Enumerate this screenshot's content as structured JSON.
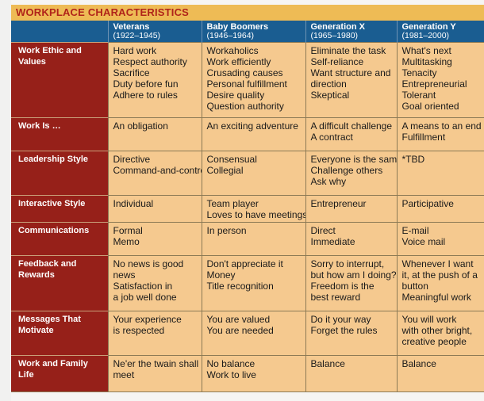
{
  "title": "WORKPLACE CHARACTERISTICS",
  "columns": [
    {
      "name": "Veterans",
      "years": "(1922–1945)"
    },
    {
      "name": "Baby Boomers",
      "years": "(1946–1964)"
    },
    {
      "name": "Generation X",
      "years": "(1965–1980)"
    },
    {
      "name": "Generation Y",
      "years": "(1981–2000)"
    }
  ],
  "rows": [
    {
      "label": [
        "Work Ethic and",
        "Values"
      ],
      "cells": [
        [
          "Hard work",
          "Respect authority",
          "Sacrifice",
          "Duty before fun",
          "Adhere to rules"
        ],
        [
          "Workaholics",
          "Work efficiently",
          "Crusading causes",
          "Personal fulfillment",
          "Desire quality",
          "Question authority"
        ],
        [
          "Eliminate the task",
          "Self-reliance",
          "Want structure and",
          "direction",
          "Skeptical"
        ],
        [
          "What's next",
          "Multitasking",
          "Tenacity",
          "Entrepreneurial",
          "Tolerant",
          "Goal oriented"
        ]
      ]
    },
    {
      "label": [
        "Work Is …"
      ],
      "cells": [
        [
          "An obligation"
        ],
        [
          "An exciting adventure"
        ],
        [
          "A difficult challenge",
          "A contract"
        ],
        [
          "A means to an end",
          "Fulfillment"
        ]
      ]
    },
    {
      "label": [
        "Leadership Style"
      ],
      "cells": [
        [
          "Directive",
          "Command-and-control"
        ],
        [
          "Consensual",
          "Collegial"
        ],
        [
          "Everyone is the same",
          "Challenge others",
          "Ask why"
        ],
        [
          "*TBD"
        ]
      ]
    },
    {
      "label": [
        "Interactive Style"
      ],
      "cells": [
        [
          "Individual"
        ],
        [
          "Team player",
          "Loves to have meetings"
        ],
        [
          "Entrepreneur"
        ],
        [
          "Participative"
        ]
      ]
    },
    {
      "label": [
        "Communications"
      ],
      "cells": [
        [
          "Formal",
          "Memo"
        ],
        [
          "In person"
        ],
        [
          "Direct",
          "Immediate"
        ],
        [
          "E-mail",
          "Voice mail"
        ]
      ]
    },
    {
      "label": [
        "Feedback and",
        "Rewards"
      ],
      "cells": [
        [
          "No news is good",
          "news",
          "Satisfaction in",
          "a job well done"
        ],
        [
          "Don't appreciate it",
          "Money",
          "Title recognition"
        ],
        [
          "Sorry to interrupt,",
          "but how am I doing?",
          "Freedom is the",
          "best reward"
        ],
        [
          "Whenever I want",
          "it, at the push of a",
          "button",
          "Meaningful work"
        ]
      ]
    },
    {
      "label": [
        "Messages That",
        "Motivate"
      ],
      "cells": [
        [
          "Your experience",
          "is respected"
        ],
        [
          "You are valued",
          "You are needed"
        ],
        [
          "Do it your way",
          "Forget the rules"
        ],
        [
          "You will work",
          "with other bright,",
          "creative people"
        ]
      ]
    },
    {
      "label": [
        "Work and Family",
        "Life"
      ],
      "cells": [
        [
          "Ne'er the twain shall",
          "meet"
        ],
        [
          "No balance",
          "Work to live"
        ],
        [
          "Balance"
        ],
        [
          "Balance"
        ]
      ]
    }
  ]
}
